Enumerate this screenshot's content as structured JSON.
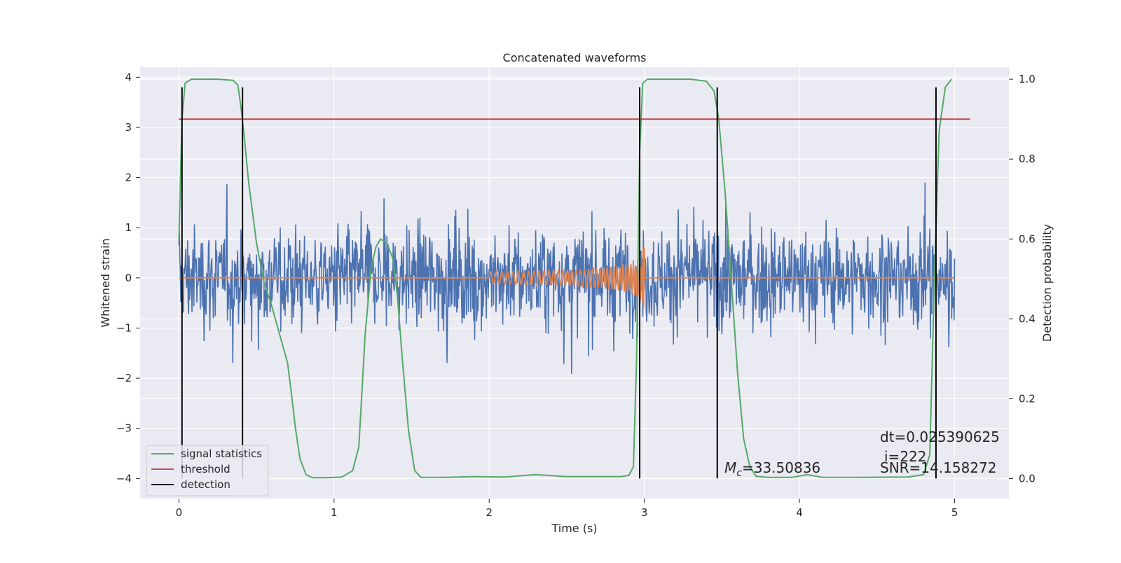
{
  "chart_data": {
    "type": "line",
    "title": "Concatenated waveforms",
    "xlabel": "Time (s)",
    "ylabel": "Whitened strain",
    "y2label": "Detection probability",
    "xlim": [
      -0.25,
      5.35
    ],
    "ylim": [
      -4.4,
      4.2
    ],
    "y2lim": [
      -0.05,
      1.03
    ],
    "xticks": [
      "0",
      "1",
      "2",
      "3",
      "4",
      "5"
    ],
    "yticks": [
      "−4",
      "−3",
      "−2",
      "−1",
      "0",
      "1",
      "2",
      "3",
      "4"
    ],
    "y2ticks": [
      "0.0",
      "0.2",
      "0.4",
      "0.6",
      "0.8",
      "1.0"
    ],
    "grid": true,
    "legend_position": "lower-left",
    "colors": {
      "strain": "#4c72b0",
      "template": "#dd8452",
      "signal": "#55a868",
      "threshold": "#c44e52",
      "detection": "#000000",
      "background": "#eaeaf2",
      "grid": "#ffffff"
    },
    "series": [
      {
        "name": "signal statistics",
        "axis": "right",
        "x": [
          0.0,
          0.02,
          0.04,
          0.08,
          0.15,
          0.25,
          0.35,
          0.38,
          0.4,
          0.42,
          0.45,
          0.5,
          0.55,
          0.6,
          0.65,
          0.7,
          0.72,
          0.75,
          0.78,
          0.82,
          0.86,
          0.95,
          1.05,
          1.12,
          1.16,
          1.2,
          1.24,
          1.27,
          1.3,
          1.34,
          1.38,
          1.41,
          1.44,
          1.48,
          1.52,
          1.56,
          1.7,
          1.9,
          2.1,
          2.3,
          2.5,
          2.7,
          2.85,
          2.9,
          2.93,
          2.95,
          2.97,
          2.99,
          3.02,
          3.1,
          3.3,
          3.4,
          3.45,
          3.48,
          3.52,
          3.56,
          3.6,
          3.64,
          3.68,
          3.72,
          3.8,
          3.95,
          4.05,
          4.15,
          4.4,
          4.7,
          4.8,
          4.84,
          4.87,
          4.9,
          4.94,
          4.98
        ],
        "y": [
          0.6,
          0.9,
          0.99,
          1.0,
          1.0,
          1.0,
          0.997,
          0.985,
          0.93,
          0.86,
          0.74,
          0.59,
          0.49,
          0.43,
          0.36,
          0.29,
          0.23,
          0.13,
          0.05,
          0.01,
          0.002,
          0.002,
          0.004,
          0.02,
          0.08,
          0.36,
          0.53,
          0.58,
          0.6,
          0.59,
          0.55,
          0.45,
          0.3,
          0.12,
          0.02,
          0.003,
          0.003,
          0.005,
          0.004,
          0.01,
          0.005,
          0.005,
          0.005,
          0.008,
          0.03,
          0.3,
          0.82,
          0.99,
          1.0,
          1.0,
          1.0,
          0.995,
          0.97,
          0.9,
          0.72,
          0.5,
          0.27,
          0.1,
          0.03,
          0.006,
          0.003,
          0.003,
          0.01,
          0.003,
          0.003,
          0.004,
          0.01,
          0.06,
          0.5,
          0.87,
          0.98,
          1.0
        ]
      },
      {
        "name": "threshold",
        "axis": "right",
        "x": [
          0.0,
          5.1
        ],
        "y": [
          0.9,
          0.9
        ]
      },
      {
        "name": "detection",
        "axis": "left",
        "x": [
          0.02,
          0.41,
          2.97,
          3.47,
          4.88
        ],
        "y_range": [
          -4.0,
          3.8
        ]
      }
    ],
    "annotations": [
      {
        "text_math": "M",
        "text_sub": "c",
        "text_rest": "=33.50836",
        "x": 3.5,
        "y": -3.8
      },
      {
        "text": "dt=0.025390625",
        "x": 4.5,
        "y": -3.2
      },
      {
        "text": "i=222",
        "x": 4.53,
        "y": -3.57
      },
      {
        "text": "SNR=14.158272",
        "x": 4.5,
        "y": -3.83
      }
    ]
  }
}
